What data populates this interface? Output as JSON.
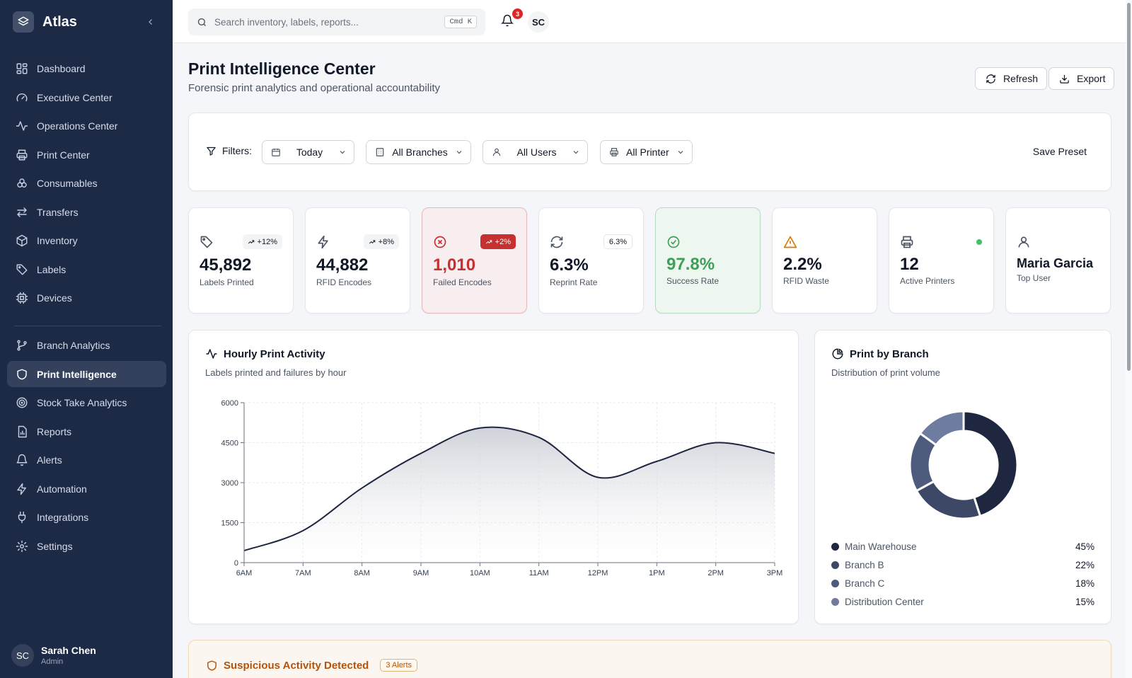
{
  "app": {
    "name": "Atlas"
  },
  "sidebar": {
    "items": [
      {
        "label": "Dashboard",
        "icon": "dashboard-icon"
      },
      {
        "label": "Executive Center",
        "icon": "gauge-icon"
      },
      {
        "label": "Operations Center",
        "icon": "activity-icon"
      },
      {
        "label": "Print Center",
        "icon": "printer-icon"
      },
      {
        "label": "Consumables",
        "icon": "boxes-icon"
      },
      {
        "label": "Transfers",
        "icon": "arrows-swap-icon"
      },
      {
        "label": "Inventory",
        "icon": "package-icon"
      },
      {
        "label": "Labels",
        "icon": "tag-icon"
      },
      {
        "label": "Devices",
        "icon": "chip-icon"
      },
      {
        "label": "Branch Analytics",
        "icon": "branch-icon"
      },
      {
        "label": "Print Intelligence",
        "icon": "shield-icon",
        "active": true
      },
      {
        "label": "Stock Take Analytics",
        "icon": "target-icon"
      },
      {
        "label": "Reports",
        "icon": "report-icon"
      },
      {
        "label": "Alerts",
        "icon": "bell-icon"
      },
      {
        "label": "Automation",
        "icon": "zap-icon"
      },
      {
        "label": "Integrations",
        "icon": "plug-icon"
      },
      {
        "label": "Settings",
        "icon": "gear-icon"
      }
    ],
    "user": {
      "initials": "SC",
      "name": "Sarah Chen",
      "role": "Admin"
    }
  },
  "topbar": {
    "search_placeholder": "Search inventory, labels, reports...",
    "shortcut": "Cmd K",
    "notifications": "3",
    "avatar_initials": "SC"
  },
  "page": {
    "title": "Print Intelligence Center",
    "subtitle": "Forensic print analytics and operational accountability",
    "refresh_label": "Refresh",
    "export_label": "Export"
  },
  "filters": {
    "label": "Filters:",
    "date": "Today",
    "branch": "All Branches",
    "user": "All Users",
    "printer": "All Printers",
    "save_preset": "Save Preset"
  },
  "kpis": [
    {
      "value": "45,892",
      "label": "Labels Printed",
      "change": "+12%",
      "icon": "tag-icon"
    },
    {
      "value": "44,882",
      "label": "RFID Encodes",
      "change": "+8%",
      "icon": "zap-icon"
    },
    {
      "value": "1,010",
      "label": "Failed Encodes",
      "change": "+2%",
      "icon": "x-circle-icon",
      "status_color": "#c53030"
    },
    {
      "value": "6.3%",
      "label": "Reprint Rate",
      "change": "6.3%",
      "icon": "refresh-icon"
    },
    {
      "value": "97.8%",
      "label": "Success Rate",
      "icon": "check-circle-icon",
      "status_color": "#3e9f58"
    },
    {
      "value": "2.2%",
      "label": "RFID Waste",
      "icon": "warning-icon",
      "status_color": "#d97706"
    },
    {
      "value": "12",
      "label": "Active Printers",
      "icon": "printer-icon",
      "status_color": "#46c06a"
    },
    {
      "value": "Maria Garcia",
      "label": "Top User",
      "icon": "user-icon"
    }
  ],
  "hourly": {
    "title": "Hourly Print Activity",
    "subtitle": "Labels printed and failures by hour"
  },
  "branch": {
    "title": "Print by Branch",
    "subtitle": "Distribution of print volume"
  },
  "alert": {
    "title": "Suspicious Activity Detected",
    "badge": "3 Alerts"
  },
  "chart_data": [
    {
      "type": "area",
      "title": "Hourly Print Activity",
      "subtitle": "Labels printed and failures by hour",
      "x": [
        "6AM",
        "7AM",
        "8AM",
        "9AM",
        "10AM",
        "11AM",
        "12PM",
        "1PM",
        "2PM",
        "3PM"
      ],
      "series": [
        {
          "values": [
            450,
            1200,
            2800,
            4100,
            5050,
            4700,
            3200,
            3800,
            4500,
            4100
          ]
        }
      ],
      "yticks": [
        0,
        1500,
        3000,
        4500,
        6000
      ],
      "ylim": [
        0,
        6000
      ],
      "grid": true,
      "color": "#1e2640"
    },
    {
      "type": "pie",
      "title": "Print by Branch",
      "subtitle": "Distribution of print volume",
      "categories": [
        "Main Warehouse",
        "Branch B",
        "Branch C",
        "Distribution Center"
      ],
      "values": [
        45,
        22,
        18,
        15
      ],
      "value_labels": [
        "45%",
        "22%",
        "18%",
        "15%"
      ],
      "colors": [
        "#1e2640",
        "#3c4866",
        "#4f5b7c",
        "#6e7ca0"
      ],
      "donut": true
    }
  ]
}
